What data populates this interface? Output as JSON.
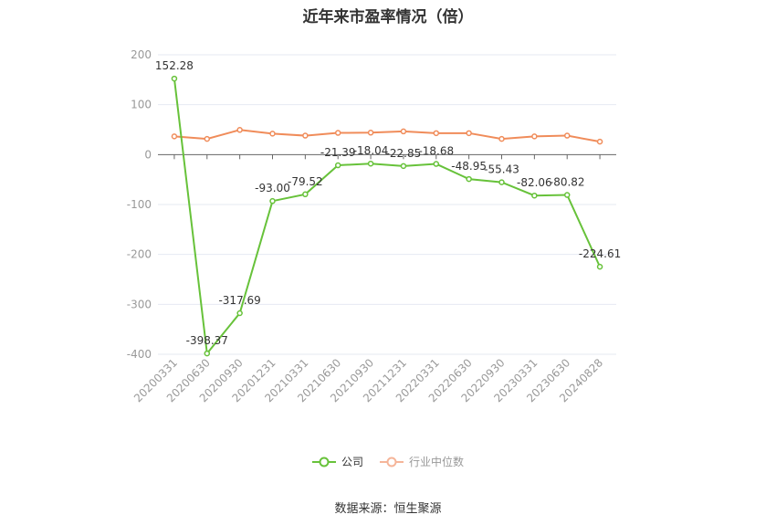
{
  "title": "近年来市盈率情况（倍）",
  "source": "数据来源：恒生聚源",
  "colors": {
    "company": "#67c23a",
    "industry": "#f08c5a",
    "grid": "#e6e9f2",
    "axis": "#666666"
  },
  "chart_data": {
    "type": "line",
    "title": "近年来市盈率情况（倍）",
    "xlabel": "",
    "ylabel": "",
    "ylim": [
      -400,
      200
    ],
    "yticks": [
      200,
      100,
      0,
      -100,
      -200,
      -300,
      -400
    ],
    "grid": true,
    "legend_position": "bottom",
    "categories": [
      "20200331",
      "20200630",
      "20200930",
      "20201231",
      "20210331",
      "20210630",
      "20210930",
      "20211231",
      "20220331",
      "20220630",
      "20220930",
      "20230331",
      "20230630",
      "20240828"
    ],
    "series": [
      {
        "name": "公司",
        "values": [
          152.28,
          -398.37,
          -317.69,
          -93.0,
          -79.52,
          -21.39,
          -18.04,
          -22.85,
          -18.68,
          -48.95,
          -55.43,
          -82.06,
          -80.82,
          -224.61
        ],
        "labels": [
          "152.28",
          "-398.37",
          "-317.69",
          "-93.00",
          "-79.52",
          "-21.39",
          "-18.04",
          "-22.85",
          "-18.68",
          "-48.95",
          "-55.43",
          "-82.06",
          "-80.82",
          "-224.61"
        ]
      },
      {
        "name": "行业中位数",
        "values": [
          36.5,
          31.5,
          49.5,
          42.0,
          38.0,
          43.5,
          44.0,
          46.5,
          43.0,
          43.0,
          31.5,
          36.5,
          38.0,
          26.0
        ]
      }
    ]
  }
}
